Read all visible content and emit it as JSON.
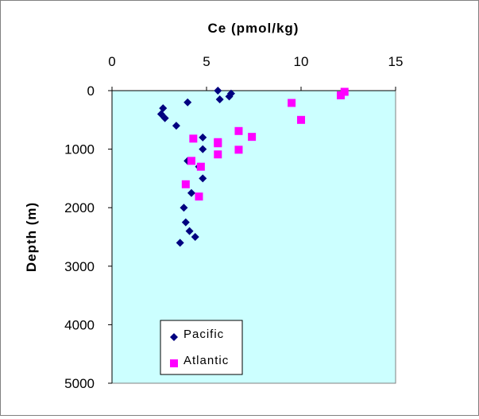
{
  "chart_data": {
    "type": "scatter",
    "title": "",
    "xlabel": "Ce (pmol/kg)",
    "ylabel": "Depth (m)",
    "xlim": [
      0,
      15
    ],
    "ylim": [
      0,
      5000
    ],
    "y_inverted": true,
    "x_axis_position": "top",
    "x_ticks": [
      0,
      5,
      10,
      15
    ],
    "y_ticks": [
      0,
      1000,
      2000,
      3000,
      4000,
      5000
    ],
    "x_tick_labels": [
      "0",
      "5",
      "10",
      "15"
    ],
    "y_tick_labels": [
      "0",
      "1000",
      "2000",
      "3000",
      "4000",
      "5000"
    ],
    "plot_background": "#ccffff",
    "grid": false,
    "legend_position": "bottom-left",
    "series": [
      {
        "name": "Pacific",
        "marker": "diamond",
        "color": "#000080",
        "points": [
          [
            5.6,
            0
          ],
          [
            6.3,
            50
          ],
          [
            6.2,
            100
          ],
          [
            5.7,
            150
          ],
          [
            4.0,
            200
          ],
          [
            2.7,
            300
          ],
          [
            2.6,
            400
          ],
          [
            2.8,
            470
          ],
          [
            3.4,
            600
          ],
          [
            4.8,
            800
          ],
          [
            4.8,
            1000
          ],
          [
            4.0,
            1200
          ],
          [
            4.6,
            1300
          ],
          [
            4.8,
            1500
          ],
          [
            4.2,
            1750
          ],
          [
            3.8,
            2000
          ],
          [
            3.9,
            2250
          ],
          [
            4.1,
            2400
          ],
          [
            4.4,
            2500
          ],
          [
            3.6,
            2600
          ]
        ]
      },
      {
        "name": "Atlantic",
        "marker": "square",
        "color": "#ff00ff",
        "points": [
          [
            12.3,
            20
          ],
          [
            12.1,
            80
          ],
          [
            9.5,
            210
          ],
          [
            10.0,
            500
          ],
          [
            6.7,
            690
          ],
          [
            7.4,
            790
          ],
          [
            4.3,
            820
          ],
          [
            5.6,
            880
          ],
          [
            5.6,
            900
          ],
          [
            6.7,
            1010
          ],
          [
            5.6,
            1090
          ],
          [
            4.2,
            1200
          ],
          [
            4.7,
            1300
          ],
          [
            3.9,
            1600
          ],
          [
            4.6,
            1810
          ]
        ]
      }
    ]
  }
}
